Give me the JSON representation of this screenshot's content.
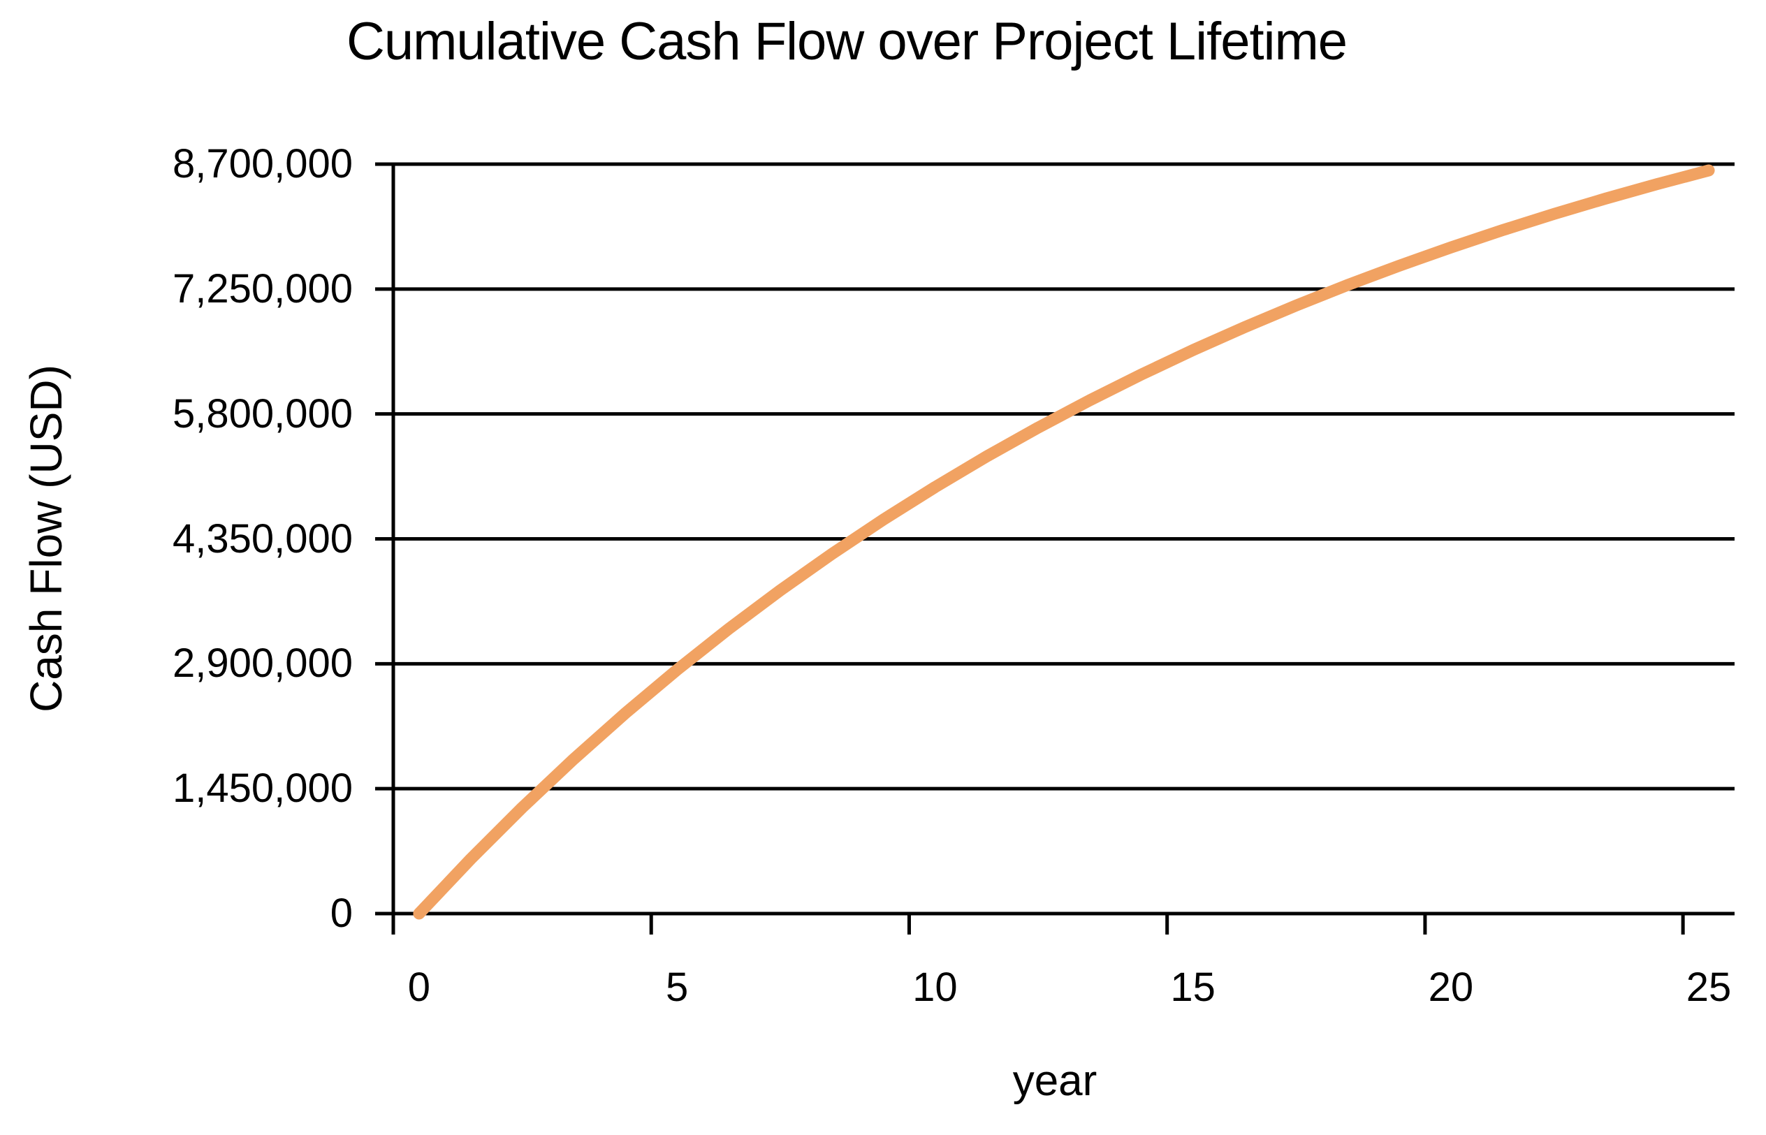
{
  "chart_data": {
    "type": "line",
    "title": "Cumulative Cash Flow over Project Lifetime",
    "xlabel": "year",
    "ylabel": "Cash Flow (USD)",
    "x": [
      0,
      1,
      2,
      3,
      4,
      5,
      6,
      7,
      8,
      9,
      10,
      11,
      12,
      13,
      14,
      15,
      16,
      17,
      18,
      19,
      20,
      21,
      22,
      23,
      24,
      25
    ],
    "series": [
      {
        "name": "cumulative-cash-flow",
        "values": [
          0,
          633000,
          1231000,
          1795000,
          2327000,
          2830000,
          3304000,
          3752000,
          4174000,
          4574000,
          4950000,
          5306000,
          5642000,
          5959000,
          6258000,
          6541000,
          6807000,
          7059000,
          7297000,
          7521000,
          7733000,
          7933000,
          8122000,
          8300000,
          8468000,
          8627000
        ]
      }
    ],
    "xticks": [
      0,
      5,
      10,
      15,
      20,
      25
    ],
    "ytick_values": [
      0,
      1450000,
      2900000,
      4350000,
      5800000,
      7250000,
      8700000
    ],
    "ytick_labels": [
      "0",
      "1,450,000",
      "2,900,000",
      "4,350,000",
      "5,800,000",
      "7,250,000",
      "8,700,000"
    ],
    "ylim": [
      0,
      8700000
    ],
    "xlim_categories": 26,
    "grid": "horizontal",
    "legend_position": "none",
    "line_color": "#F1A262",
    "axis_color": "#000000",
    "text_color": "#000000",
    "background_color": "#FFFFFF"
  }
}
